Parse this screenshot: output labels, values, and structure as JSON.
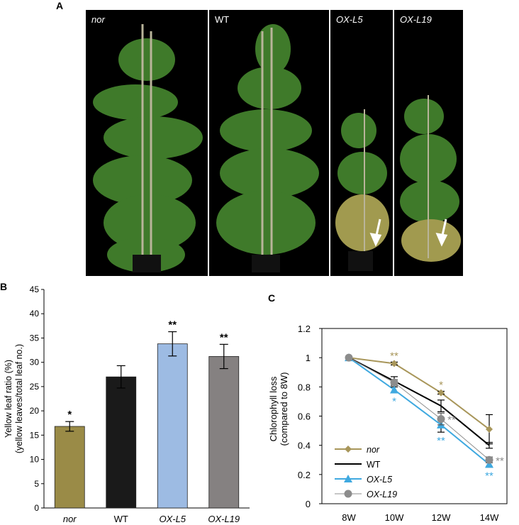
{
  "panels": {
    "a": {
      "letter": "A"
    },
    "b": {
      "letter": "B"
    },
    "c": {
      "letter": "C"
    }
  },
  "photos": [
    {
      "label": "nor",
      "italic": true
    },
    {
      "label": "WT",
      "italic": false
    },
    {
      "label": "OX-L5",
      "italic": true
    },
    {
      "label": "OX-L19",
      "italic": true
    }
  ],
  "colors": {
    "nor": "#9a8b47",
    "WT": "#1a1a1a",
    "OX_L5": "#9dbbe3",
    "OX_L19": "#858181",
    "line_nor": "#a8965a",
    "line_WT": "#000000",
    "line_L5": "#3fa9e0",
    "line_L19": "#8c8c8c",
    "arrow": "#ffffff"
  },
  "chart_data": [
    {
      "type": "bar",
      "ylabel": "Yellow leaf ratio (%)",
      "ylabel2": "(yellow leaves/total leaf no.)",
      "ylim": [
        0,
        45
      ],
      "yticks": [
        0,
        5,
        10,
        15,
        20,
        25,
        30,
        35,
        40,
        45
      ],
      "categories": [
        "nor",
        "WT",
        "OX-L5",
        "OX-L19"
      ],
      "category_italic": [
        true,
        false,
        true,
        true
      ],
      "values": [
        16.8,
        27.0,
        33.8,
        31.2
      ],
      "errors": [
        1.0,
        2.3,
        2.5,
        2.5
      ],
      "significance": [
        "*",
        "",
        "**",
        "**"
      ]
    },
    {
      "type": "line",
      "ylabel": "Chlorophyll loss",
      "ylabel2": "(compared to 8W)",
      "ylim": [
        0,
        1.2
      ],
      "yticks": [
        "0",
        "0.2",
        "0.4",
        "0.6",
        "0.8",
        "1",
        "1.2"
      ],
      "x": [
        "8W",
        "10W",
        "12W",
        "14W"
      ],
      "series": [
        {
          "name": "nor",
          "values": [
            1.0,
            0.96,
            0.76,
            0.51
          ],
          "errors": [
            0,
            0.01,
            0.01,
            0.1
          ],
          "marker": "diamond",
          "stars": [
            "",
            "**",
            "*",
            ""
          ]
        },
        {
          "name": "WT",
          "values": [
            1.0,
            0.84,
            0.67,
            0.4
          ],
          "errors": [
            0,
            0.03,
            0.04,
            0.02
          ],
          "marker": "none",
          "stars": [
            "",
            "",
            "",
            ""
          ]
        },
        {
          "name": "OX-L5",
          "values": [
            1.0,
            0.78,
            0.54,
            0.27
          ],
          "errors": [
            0,
            0.02,
            0.05,
            0.02
          ],
          "marker": "triangle",
          "stars": [
            "",
            "*",
            "**",
            "**"
          ]
        },
        {
          "name": "OX-L19",
          "values": [
            1.0,
            0.83,
            0.58,
            0.3
          ],
          "errors": [
            0,
            0.02,
            0.04,
            0.02
          ],
          "marker": "circle",
          "stars": [
            "",
            "",
            "**",
            "**"
          ]
        }
      ],
      "legend_position": "bottom-left"
    }
  ]
}
